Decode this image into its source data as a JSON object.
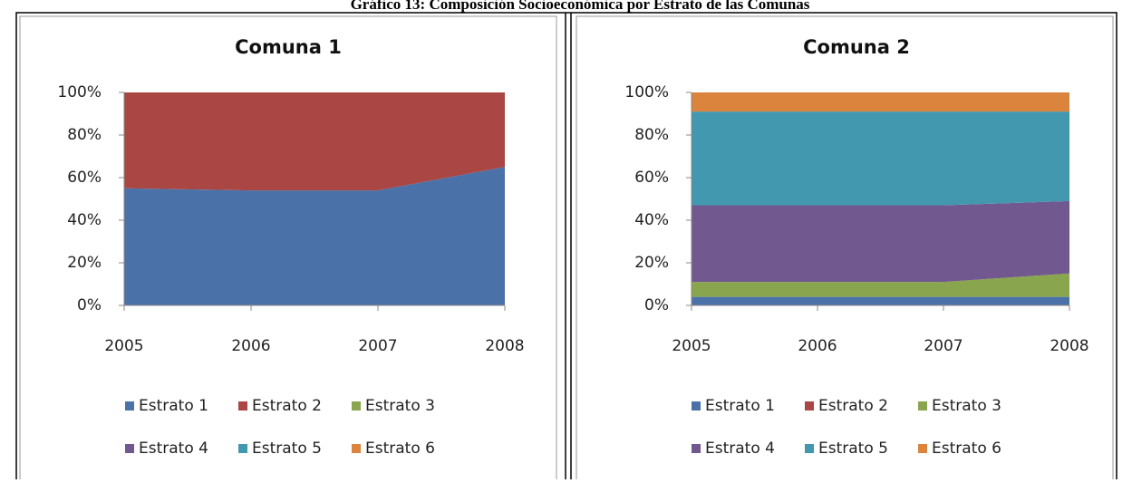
{
  "title": "Gráfico 13: Composición Socioeconómica por Estrato de las Comunas",
  "chart_data": [
    {
      "type": "area",
      "stacked": true,
      "title": "Comuna 1",
      "categories": [
        "2005",
        "2006",
        "2007",
        "2008"
      ],
      "ylim": [
        0,
        100
      ],
      "yticks": [
        {
          "value": 0,
          "label": "0%"
        },
        {
          "value": 20,
          "label": "20%"
        },
        {
          "value": 40,
          "label": "40%"
        },
        {
          "value": 60,
          "label": "60%"
        },
        {
          "value": 80,
          "label": "80%"
        },
        {
          "value": 100,
          "label": "100%"
        }
      ],
      "series": [
        {
          "name": "Estrato 1",
          "color": "#4a72a8",
          "values": [
            55,
            54,
            54,
            65
          ]
        },
        {
          "name": "Estrato 2",
          "color": "#aa4643",
          "values": [
            45,
            46,
            46,
            35
          ]
        },
        {
          "name": "Estrato 3",
          "color": "#89a54e",
          "values": [
            0,
            0,
            0,
            0
          ]
        },
        {
          "name": "Estrato 4",
          "color": "#71588f",
          "values": [
            0,
            0,
            0,
            0
          ]
        },
        {
          "name": "Estrato 5",
          "color": "#4198af",
          "values": [
            0,
            0,
            0,
            0
          ]
        },
        {
          "name": "Estrato 6",
          "color": "#db843d",
          "values": [
            0,
            0,
            0,
            0
          ]
        }
      ]
    },
    {
      "type": "area",
      "stacked": true,
      "title": "Comuna 2",
      "categories": [
        "2005",
        "2006",
        "2007",
        "2008"
      ],
      "ylim": [
        0,
        100
      ],
      "yticks": [
        {
          "value": 0,
          "label": "0%"
        },
        {
          "value": 20,
          "label": "20%"
        },
        {
          "value": 40,
          "label": "40%"
        },
        {
          "value": 60,
          "label": "60%"
        },
        {
          "value": 80,
          "label": "80%"
        },
        {
          "value": 100,
          "label": "100%"
        }
      ],
      "series": [
        {
          "name": "Estrato 1",
          "color": "#4a72a8",
          "values": [
            4,
            4,
            4,
            4
          ]
        },
        {
          "name": "Estrato 2",
          "color": "#aa4643",
          "values": [
            0,
            0,
            0,
            0
          ]
        },
        {
          "name": "Estrato 3",
          "color": "#89a54e",
          "values": [
            7,
            7,
            7,
            11
          ]
        },
        {
          "name": "Estrato 4",
          "color": "#71588f",
          "values": [
            36,
            36,
            36,
            34
          ]
        },
        {
          "name": "Estrato 5",
          "color": "#4198af",
          "values": [
            44,
            44,
            44,
            42
          ]
        },
        {
          "name": "Estrato 6",
          "color": "#db843d",
          "values": [
            9,
            9,
            9,
            9
          ]
        }
      ]
    }
  ]
}
